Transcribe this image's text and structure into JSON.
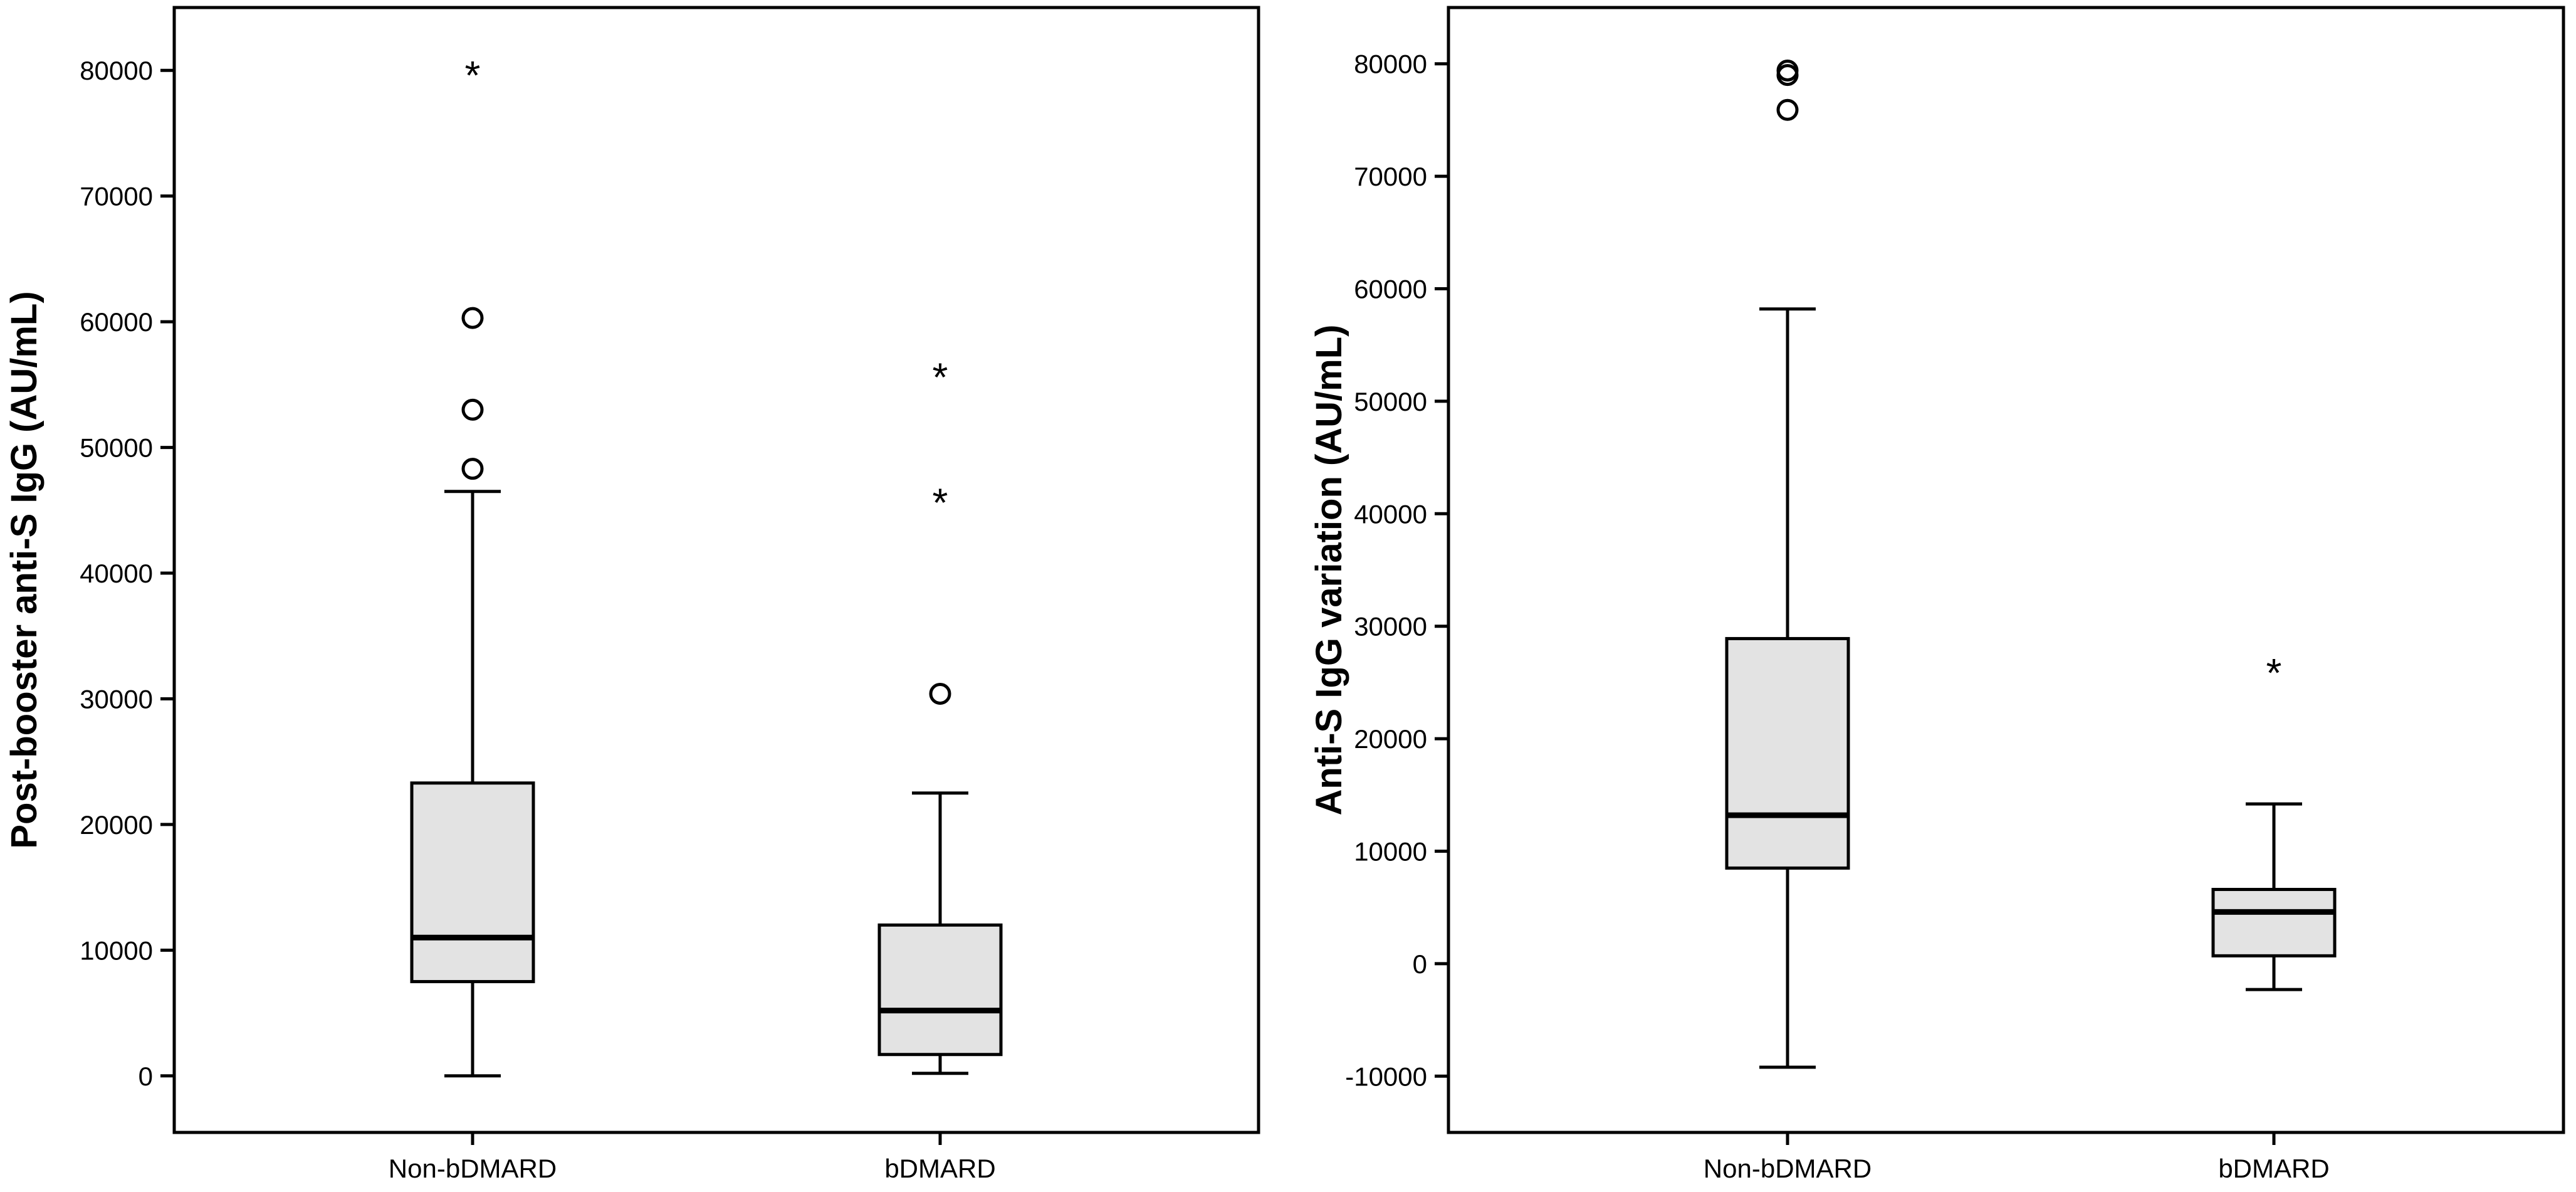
{
  "chart_data": [
    {
      "type": "box",
      "ylabel": "Post-booster anti-S IgG (AU/mL)",
      "ylim": [
        -4500,
        85000
      ],
      "yticks": [
        0,
        10000,
        20000,
        30000,
        40000,
        50000,
        60000,
        70000,
        80000
      ],
      "categories": [
        "Non-bDMARD",
        "bDMARD"
      ],
      "boxes": [
        {
          "category": "Non-bDMARD",
          "whisker_low": 0,
          "q1": 7500,
          "median": 11000,
          "q3": 23300,
          "whisker_high": 46500,
          "outliers": [
            48300,
            53000,
            60300
          ],
          "extremes": [
            80000
          ]
        },
        {
          "category": "bDMARD",
          "whisker_low": 200,
          "q1": 1700,
          "median": 5200,
          "q3": 12000,
          "whisker_high": 22500,
          "outliers": [
            30400
          ],
          "extremes": [
            46000,
            56000
          ]
        }
      ]
    },
    {
      "type": "box",
      "ylabel": "Anti-S IgG variation (AU/mL)",
      "ylim": [
        -15000,
        85000
      ],
      "yticks": [
        -10000,
        0,
        10000,
        20000,
        30000,
        40000,
        50000,
        60000,
        70000,
        80000
      ],
      "categories": [
        "Non-bDMARD",
        "bDMARD"
      ],
      "boxes": [
        {
          "category": "Non-bDMARD",
          "whisker_low": -9200,
          "q1": 8500,
          "median": 13200,
          "q3": 28900,
          "whisker_high": 58200,
          "outliers": [
            75900,
            79000,
            79400
          ],
          "extremes": []
        },
        {
          "category": "bDMARD",
          "whisker_low": -2300,
          "q1": 700,
          "median": 4600,
          "q3": 6600,
          "whisker_high": 14200,
          "outliers": [],
          "extremes": [
            26300
          ]
        }
      ]
    }
  ]
}
